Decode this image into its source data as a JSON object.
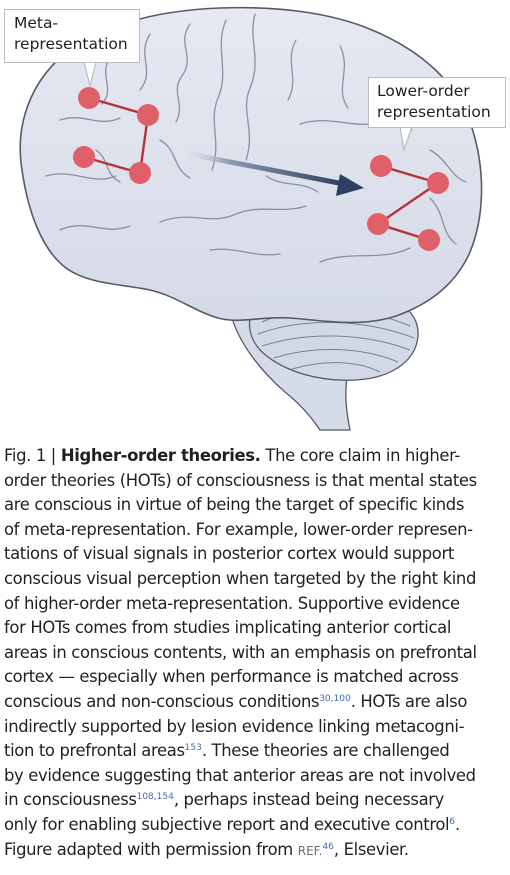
{
  "callouts": {
    "meta": [
      "Meta-",
      "representation"
    ],
    "lower": [
      "Lower-order",
      "representation"
    ]
  },
  "caption": {
    "fig_label": "Fig. 1 | ",
    "title": "Higher-order theories.",
    "lines": [
      " The core claim in higher-",
      "order theories (HOTs) of consciousness is that mental states",
      "are conscious in virtue of being the target of specific kinds",
      "of meta-representation. For example, lower-order represen-",
      "tations of visual signals in posterior cortex would support",
      "conscious visual perception when targeted by the right kind",
      "of higher-order meta-representation. Supportive evidence",
      "for HOTs comes from studies implicating anterior cortical",
      "areas in conscious contents, with an emphasis on prefrontal",
      "cortex — especially when performance is matched across"
    ],
    "line11_a": "conscious and non-conscious conditions",
    "cite1": "30,100",
    "line11_b": ". HOTs are also",
    "line12": "indirectly supported by lesion evidence linking metacogni-",
    "line13_a": "tion to prefrontal areas",
    "cite2": "153",
    "line13_b": ". These theories are challenged",
    "line14": "by evidence suggesting that anterior areas are not involved",
    "line15_a": "in consciousness",
    "cite3": "108,154",
    "line15_b": ", perhaps instead being necessary",
    "line16_a": "only for enabling subjective report and executive control",
    "cite4": "6",
    "line16_b": ".",
    "line17_a": "Figure adapted with permission from ",
    "ref_label": "REF.",
    "cite5": "46",
    "line17_b": ", Elsevier."
  },
  "colors": {
    "brain_fill": "#dde1ec",
    "brain_outline": "#555a66",
    "node": "#e0606a",
    "edge": "#b8323a",
    "arrow": "#2e3f60",
    "citation": "#3f70b0"
  }
}
